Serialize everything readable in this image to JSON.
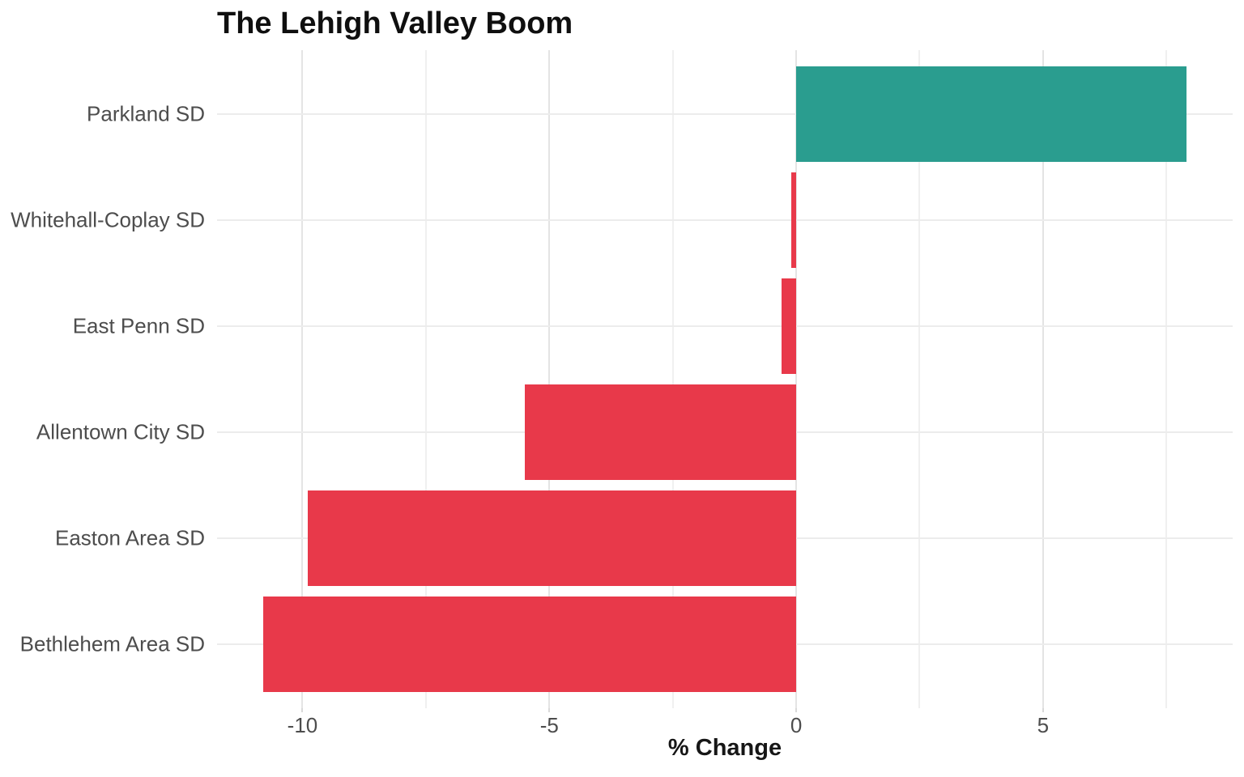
{
  "chart_data": {
    "type": "bar",
    "orientation": "horizontal",
    "title": "The Lehigh Valley Boom",
    "xlabel": "% Change",
    "ylabel": "",
    "categories": [
      "Parkland SD",
      "Whitehall-Coplay SD",
      "East Penn SD",
      "Allentown City SD",
      "Easton Area SD",
      "Bethlehem Area SD"
    ],
    "values": [
      7.9,
      -0.1,
      -0.3,
      -5.5,
      -9.9,
      -10.8
    ],
    "xlim": [
      -11.73,
      8.84
    ],
    "x_major_ticks": [
      -10,
      -5,
      0,
      5
    ],
    "x_minor_ticks": [
      -7.5,
      -2.5,
      2.5,
      7.5
    ],
    "grid": "vertical major+minor, horizontal major at category centers",
    "legend": "none",
    "bar_width_fraction": 0.9,
    "row_edge_expansion": 0.6,
    "colors": {
      "positive": "#2a9d8f",
      "negative": "#e8394a",
      "grid_major": "#e4e4e4",
      "grid_minor": "#f0f0f0",
      "axis_text": "#4d4d4d",
      "title_text": "#0f0f0f"
    }
  }
}
